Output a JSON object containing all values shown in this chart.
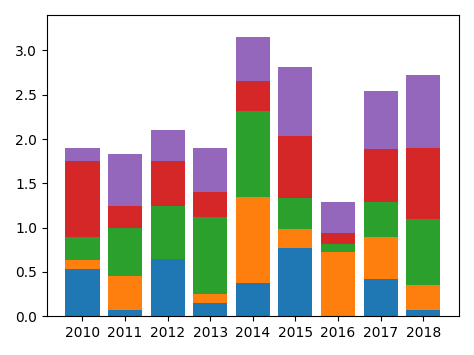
{
  "years": [
    2010,
    2011,
    2012,
    2013,
    2014,
    2015,
    2016,
    2017,
    2018
  ],
  "blue": [
    0.53,
    0.07,
    0.65,
    0.15,
    0.38,
    0.77,
    0.0,
    0.42,
    0.07
  ],
  "orange": [
    0.1,
    0.38,
    0.0,
    0.1,
    0.97,
    0.22,
    0.72,
    0.47,
    0.28
  ],
  "green": [
    0.27,
    0.55,
    0.6,
    0.87,
    0.97,
    0.35,
    0.1,
    0.4,
    0.75
  ],
  "red": [
    0.85,
    0.25,
    0.5,
    0.28,
    0.33,
    0.7,
    0.12,
    0.6,
    0.8
  ],
  "purple": [
    0.15,
    0.58,
    0.35,
    0.5,
    0.5,
    0.77,
    0.35,
    0.65,
    0.82
  ],
  "colors": [
    "#1f77b4",
    "#ff7f0e",
    "#2ca02c",
    "#d62728",
    "#9467bd"
  ],
  "ylim": [
    0,
    3.4
  ],
  "yticks": [
    0.0,
    0.5,
    1.0,
    1.5,
    2.0,
    2.5,
    3.0
  ],
  "bar_width": 0.8
}
